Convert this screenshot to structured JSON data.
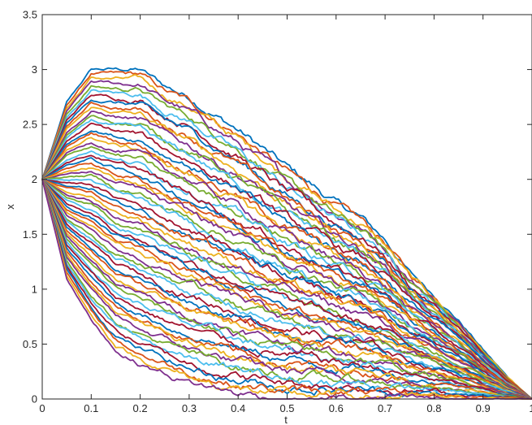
{
  "chart_data": {
    "type": "line",
    "title": "",
    "xlabel": "t",
    "ylabel": "x",
    "xlim": [
      0,
      1
    ],
    "ylim": [
      0,
      3.5
    ],
    "x_ticks": [
      "0",
      "0.1",
      "0.2",
      "0.3",
      "0.4",
      "0.5",
      "0.6",
      "0.7",
      "0.8",
      "0.9",
      "1"
    ],
    "y_ticks": [
      "0",
      "0.5",
      "1",
      "1.5",
      "2",
      "2.5",
      "3",
      "3.5"
    ],
    "grid": false,
    "legend": "none",
    "start_value": 2,
    "end_value": 0,
    "series_count": 60,
    "envelope_upper": {
      "x": [
        0,
        0.05,
        0.1,
        0.15,
        0.2,
        0.25,
        0.3,
        0.35,
        0.4,
        0.45,
        0.5,
        0.55,
        0.6,
        0.65,
        0.7,
        0.75,
        0.8,
        0.85,
        0.9,
        0.95,
        1
      ],
      "y": [
        2.0,
        2.7,
        3.0,
        3.0,
        3.0,
        2.85,
        2.75,
        2.6,
        2.45,
        2.28,
        2.1,
        1.95,
        1.78,
        1.65,
        1.45,
        1.15,
        0.95,
        0.72,
        0.45,
        0.2,
        0
      ]
    },
    "envelope_lower": {
      "x": [
        0,
        0.05,
        0.1,
        0.15,
        0.2,
        0.3,
        0.4,
        0.5,
        0.55,
        0.6,
        1
      ],
      "y": [
        2.0,
        1.1,
        0.72,
        0.45,
        0.32,
        0.15,
        0.05,
        0.0,
        0.0,
        0.0,
        0
      ]
    },
    "colors": [
      "#0072BD",
      "#D95319",
      "#EDB120",
      "#7E2F8E",
      "#77AC30",
      "#4DBEEE",
      "#A2142F"
    ]
  }
}
